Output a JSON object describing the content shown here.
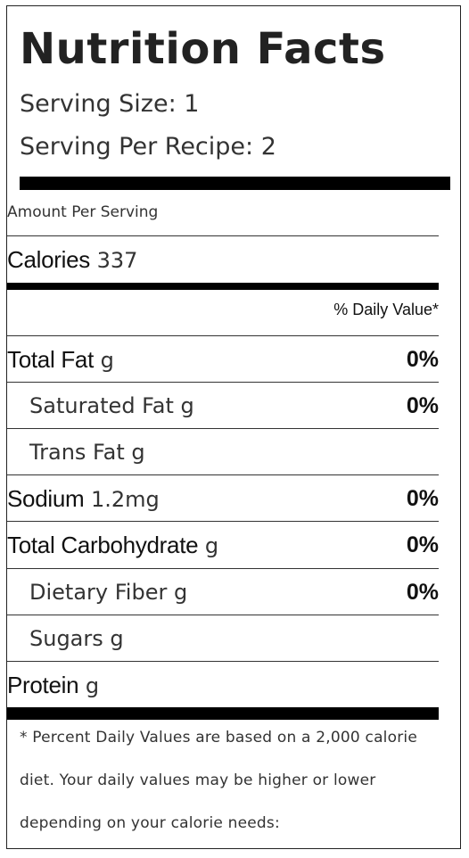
{
  "label": {
    "title": "Nutrition Facts",
    "serving_size": "Serving Size: 1",
    "serving_per_recipe": "Serving Per Recipe: 2",
    "amount_per_serving": "Amount Per Serving",
    "calories": {
      "label": "Calories",
      "value": "337"
    },
    "daily_value_header": "% Daily Value*",
    "nutrients": [
      {
        "name": "Total Fat",
        "amount": "g",
        "pct": "0%"
      },
      {
        "name": "Saturated Fat",
        "amount": "g",
        "pct": "0%"
      },
      {
        "name": "Trans Fat",
        "amount": "g",
        "pct": ""
      },
      {
        "name": "Sodium",
        "amount": "1.2mg",
        "pct": "0%"
      },
      {
        "name": "Total Carbohydrate",
        "amount": "g",
        "pct": "0%"
      },
      {
        "name": "Dietary Fiber",
        "amount": "g",
        "pct": "0%"
      },
      {
        "name": "Sugars",
        "amount": "g",
        "pct": ""
      },
      {
        "name": "Protein",
        "amount": "g",
        "pct": ""
      }
    ],
    "footnote": "* Percent Daily Values are based on a 2,000 calorie diet. Your daily values may be higher or lower depending on your calorie needs:"
  }
}
